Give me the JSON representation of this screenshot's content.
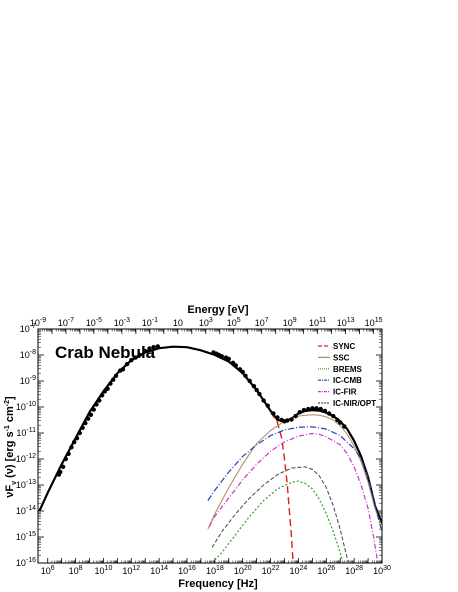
{
  "chart_data": {
    "type": "line",
    "title": "Crab Nebula",
    "xlabel": "Frequency [Hz]",
    "ylabel": "νF_ν (ν) [erg s^-1 cm^-2]",
    "x2label": "Energy [eV]",
    "xscale": "log",
    "yscale": "log",
    "xlim": [
      200000.0,
      1e+30
    ],
    "ylim": [
      1e-16,
      1e-07
    ],
    "x2lim": [
      1e-09,
      4000000000000000.0
    ],
    "x_ticks": [
      {
        "exp": 6,
        "label": "10^6"
      },
      {
        "exp": 8,
        "label": "10^8"
      },
      {
        "exp": 10,
        "label": "10^10"
      },
      {
        "exp": 12,
        "label": "10^12"
      },
      {
        "exp": 14,
        "label": "10^14"
      },
      {
        "exp": 16,
        "label": "10^16"
      },
      {
        "exp": 18,
        "label": "10^18"
      },
      {
        "exp": 20,
        "label": "10^20"
      },
      {
        "exp": 22,
        "label": "10^22"
      },
      {
        "exp": 24,
        "label": "10^24"
      },
      {
        "exp": 26,
        "label": "10^26"
      },
      {
        "exp": 28,
        "label": "10^28"
      },
      {
        "exp": 30,
        "label": "10^30"
      }
    ],
    "x2_ticks": [
      {
        "exp": -9,
        "label": "10^-9"
      },
      {
        "exp": -7,
        "label": "10^-7"
      },
      {
        "exp": -5,
        "label": "10^-5"
      },
      {
        "exp": -3,
        "label": "10^-3"
      },
      {
        "exp": -1,
        "label": "10^-1"
      },
      {
        "exp": 1,
        "label": "10"
      },
      {
        "exp": 3,
        "label": "10^3"
      },
      {
        "exp": 5,
        "label": "10^5"
      },
      {
        "exp": 7,
        "label": "10^7"
      },
      {
        "exp": 9,
        "label": "10^9"
      },
      {
        "exp": 11,
        "label": "10^11"
      },
      {
        "exp": 13,
        "label": "10^13"
      },
      {
        "exp": 15,
        "label": "10^15"
      }
    ],
    "y_ticks": [
      {
        "exp": -7,
        "label": "10^-7"
      },
      {
        "exp": -8,
        "label": "10^-8"
      },
      {
        "exp": -9,
        "label": "10^-9"
      },
      {
        "exp": -10,
        "label": "10^-10"
      },
      {
        "exp": -11,
        "label": "10^-11"
      },
      {
        "exp": -12,
        "label": "10^-12"
      },
      {
        "exp": -13,
        "label": "10^-13"
      },
      {
        "exp": -14,
        "label": "10^-14"
      },
      {
        "exp": -15,
        "label": "10^-15"
      },
      {
        "exp": -16,
        "label": "10^-16"
      }
    ],
    "legend_position": "top-right",
    "series": [
      {
        "name": "Total",
        "color": "#000000",
        "dash": "",
        "width": 2.2,
        "in_legend": false,
        "points": [
          [
            5.4,
            -14.0
          ],
          [
            6,
            -13.3
          ],
          [
            7,
            -12.2
          ],
          [
            8,
            -11.2
          ],
          [
            9,
            -10.2
          ],
          [
            10,
            -9.4
          ],
          [
            11,
            -8.7
          ],
          [
            12,
            -8.2
          ],
          [
            13,
            -7.9
          ],
          [
            14,
            -7.74
          ],
          [
            15,
            -7.68
          ],
          [
            16,
            -7.7
          ],
          [
            17,
            -7.82
          ],
          [
            18,
            -8.0
          ],
          [
            19,
            -8.25
          ],
          [
            20,
            -8.7
          ],
          [
            21,
            -9.35
          ],
          [
            22,
            -10.15
          ],
          [
            22.5,
            -10.5
          ],
          [
            23,
            -10.55
          ],
          [
            23.5,
            -10.45
          ],
          [
            24,
            -10.25
          ],
          [
            24.5,
            -10.15
          ],
          [
            25,
            -10.12
          ],
          [
            25.5,
            -10.14
          ],
          [
            26,
            -10.22
          ],
          [
            26.5,
            -10.35
          ],
          [
            27,
            -10.55
          ],
          [
            27.5,
            -10.85
          ],
          [
            28,
            -11.3
          ],
          [
            28.5,
            -11.9
          ],
          [
            29,
            -12.7
          ],
          [
            29.5,
            -13.8
          ],
          [
            30,
            -14.5
          ]
        ]
      },
      {
        "name": "SYNC",
        "color": "#e41a1c",
        "dash": "7,4",
        "width": 1.4,
        "in_legend": true,
        "points": [
          [
            22,
            -10.2
          ],
          [
            22.5,
            -10.6
          ],
          [
            22.8,
            -11.2
          ],
          [
            23.0,
            -12.0
          ],
          [
            23.2,
            -13.0
          ],
          [
            23.35,
            -14.0
          ],
          [
            23.5,
            -15.0
          ],
          [
            23.62,
            -16.0
          ]
        ]
      },
      {
        "name": "SSC",
        "color": "#b08a57",
        "dash": "",
        "width": 1.0,
        "in_legend": true,
        "points": [
          [
            17.5,
            -14.7
          ],
          [
            18,
            -14.1
          ],
          [
            19,
            -13.1
          ],
          [
            20,
            -12.2
          ],
          [
            21,
            -11.4
          ],
          [
            22,
            -10.9
          ],
          [
            23,
            -10.55
          ],
          [
            24,
            -10.35
          ],
          [
            24.5,
            -10.32
          ],
          [
            25,
            -10.3
          ],
          [
            25.5,
            -10.32
          ],
          [
            26,
            -10.38
          ],
          [
            26.5,
            -10.5
          ],
          [
            27,
            -10.72
          ],
          [
            27.5,
            -11.05
          ],
          [
            28,
            -11.5
          ],
          [
            28.5,
            -12.1
          ],
          [
            29,
            -12.9
          ],
          [
            29.5,
            -13.9
          ],
          [
            30,
            -14.6
          ]
        ]
      },
      {
        "name": "BREMS",
        "color": "#33a02c",
        "dash": "2,2",
        "width": 1.2,
        "in_legend": true,
        "points": [
          [
            17.8,
            -16.0
          ],
          [
            18.5,
            -15.6
          ],
          [
            19.5,
            -14.9
          ],
          [
            20.5,
            -14.2
          ],
          [
            21.5,
            -13.6
          ],
          [
            22.5,
            -13.15
          ],
          [
            23.5,
            -12.9
          ],
          [
            24,
            -12.85
          ],
          [
            24.5,
            -12.95
          ],
          [
            25,
            -13.15
          ],
          [
            25.5,
            -13.55
          ],
          [
            26,
            -14.1
          ],
          [
            26.5,
            -14.8
          ],
          [
            27,
            -15.6
          ],
          [
            27.2,
            -16.0
          ]
        ]
      },
      {
        "name": "IC-CMB",
        "color": "#1f3fbf",
        "dash": "6,2,1,2",
        "width": 1.2,
        "in_legend": true,
        "points": [
          [
            17.5,
            -13.6
          ],
          [
            18,
            -13.2
          ],
          [
            19,
            -12.5
          ],
          [
            20,
            -11.9
          ],
          [
            21,
            -11.45
          ],
          [
            22,
            -11.1
          ],
          [
            23,
            -10.88
          ],
          [
            24,
            -10.78
          ],
          [
            25,
            -10.76
          ],
          [
            26,
            -10.85
          ],
          [
            27,
            -11.1
          ],
          [
            28,
            -11.6
          ],
          [
            28.5,
            -12.0
          ],
          [
            29,
            -12.7
          ],
          [
            29.5,
            -13.8
          ],
          [
            30,
            -14.8
          ]
        ]
      },
      {
        "name": "IC-FIR",
        "color": "#cc33cc",
        "dash": "5,2,1,2",
        "width": 1.2,
        "in_legend": true,
        "points": [
          [
            17.6,
            -14.6
          ],
          [
            18,
            -14.2
          ],
          [
            19,
            -13.5
          ],
          [
            20,
            -12.8
          ],
          [
            21,
            -12.2
          ],
          [
            22,
            -11.7
          ],
          [
            23,
            -11.35
          ],
          [
            24,
            -11.12
          ],
          [
            25,
            -11.02
          ],
          [
            25.5,
            -11.05
          ],
          [
            26,
            -11.15
          ],
          [
            27,
            -11.45
          ],
          [
            27.5,
            -11.8
          ],
          [
            28,
            -12.3
          ],
          [
            28.5,
            -13.0
          ],
          [
            29,
            -13.9
          ],
          [
            29.4,
            -15.0
          ],
          [
            29.7,
            -16.0
          ]
        ]
      },
      {
        "name": "IC-NIR/OPT",
        "color": "#555555",
        "dash": "4,2",
        "width": 1.1,
        "in_legend": true,
        "points": [
          [
            17.8,
            -15.4
          ],
          [
            18.5,
            -14.8
          ],
          [
            19.5,
            -14.1
          ],
          [
            20.5,
            -13.5
          ],
          [
            21.5,
            -13.0
          ],
          [
            22.5,
            -12.6
          ],
          [
            23.5,
            -12.35
          ],
          [
            24.5,
            -12.3
          ],
          [
            25,
            -12.4
          ],
          [
            25.5,
            -12.65
          ],
          [
            26,
            -13.1
          ],
          [
            26.5,
            -13.8
          ],
          [
            27,
            -14.7
          ],
          [
            27.4,
            -15.6
          ],
          [
            27.6,
            -16.0
          ]
        ]
      }
    ],
    "data_points": [
      [
        6.8,
        -12.6
      ],
      [
        6.9,
        -12.5
      ],
      [
        7.1,
        -12.3
      ],
      [
        7.3,
        -12.0
      ],
      [
        7.5,
        -11.8
      ],
      [
        7.7,
        -11.55
      ],
      [
        7.9,
        -11.35
      ],
      [
        8.1,
        -11.2
      ],
      [
        8.3,
        -11.0
      ],
      [
        8.5,
        -10.8
      ],
      [
        8.7,
        -10.62
      ],
      [
        8.9,
        -10.45
      ],
      [
        9.1,
        -10.3
      ],
      [
        9.3,
        -10.1
      ],
      [
        9.5,
        -9.9
      ],
      [
        9.7,
        -9.75
      ],
      [
        9.9,
        -9.55
      ],
      [
        10.1,
        -9.4
      ],
      [
        10.3,
        -9.3
      ],
      [
        10.5,
        -9.1
      ],
      [
        10.7,
        -8.95
      ],
      [
        10.9,
        -8.8
      ],
      [
        11.2,
        -8.6
      ],
      [
        11.4,
        -8.55
      ],
      [
        11.7,
        -8.35
      ],
      [
        12.0,
        -8.2
      ],
      [
        12.3,
        -8.1
      ],
      [
        12.6,
        -8.0
      ],
      [
        13.0,
        -7.85
      ],
      [
        13.3,
        -7.75
      ],
      [
        13.6,
        -7.7
      ],
      [
        13.9,
        -7.67
      ],
      [
        17.9,
        -7.9
      ],
      [
        18.1,
        -7.95
      ],
      [
        18.3,
        -8.0
      ],
      [
        18.5,
        -8.05
      ],
      [
        18.8,
        -8.1
      ],
      [
        19.0,
        -8.15
      ],
      [
        19.3,
        -8.3
      ],
      [
        19.5,
        -8.4
      ],
      [
        19.8,
        -8.55
      ],
      [
        20.0,
        -8.65
      ],
      [
        20.2,
        -8.8
      ],
      [
        20.5,
        -9.0
      ],
      [
        20.8,
        -9.2
      ],
      [
        21.0,
        -9.35
      ],
      [
        21.2,
        -9.5
      ],
      [
        21.5,
        -9.75
      ],
      [
        21.8,
        -9.95
      ],
      [
        22.2,
        -10.25
      ],
      [
        22.5,
        -10.4
      ],
      [
        22.8,
        -10.5
      ],
      [
        23.0,
        -10.55
      ],
      [
        23.2,
        -10.52
      ],
      [
        23.5,
        -10.48
      ],
      [
        23.8,
        -10.35
      ],
      [
        24.1,
        -10.2
      ],
      [
        24.4,
        -10.12
      ],
      [
        24.7,
        -10.08
      ],
      [
        25.0,
        -10.05
      ],
      [
        25.3,
        -10.05
      ],
      [
        25.6,
        -10.08
      ],
      [
        25.9,
        -10.15
      ],
      [
        26.2,
        -10.25
      ],
      [
        26.5,
        -10.35
      ],
      [
        26.8,
        -10.5
      ],
      [
        27.0,
        -10.6
      ],
      [
        27.3,
        -10.75
      ]
    ]
  }
}
